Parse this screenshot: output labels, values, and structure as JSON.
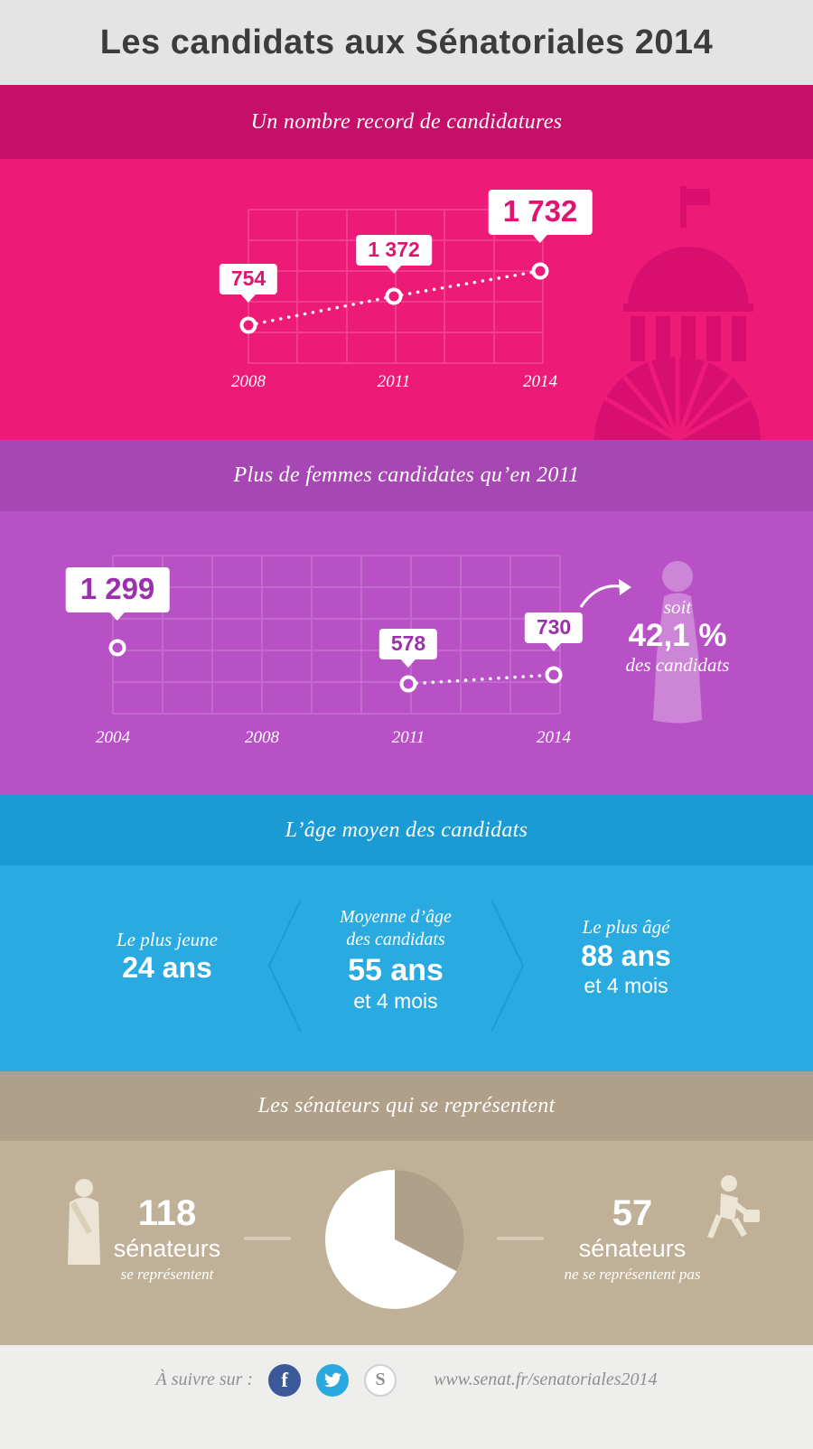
{
  "header": {
    "title": "Les candidats aux Sénatoriales 2014"
  },
  "sections": {
    "candidatures": {
      "title": "Un nombre record de candidatures",
      "years": [
        "2008",
        "2011",
        "2014"
      ],
      "labels": [
        "754",
        "1 372",
        "1 732"
      ]
    },
    "femmes": {
      "title": "Plus de femmes candidates qu’en 2011",
      "years": [
        "2004",
        "2008",
        "2011",
        "2014"
      ],
      "labels": [
        "1 299",
        "578",
        "730"
      ],
      "share": {
        "prefix": "soit",
        "value": "42,1 %",
        "suffix": "des candidats"
      }
    },
    "age": {
      "title": "L’âge moyen des candidats",
      "youngest": {
        "label": "Le plus jeune",
        "value": "24 ans"
      },
      "average": {
        "label_line1": "Moyenne d’âge",
        "label_line2": "des candidats",
        "value": "55 ans",
        "suffix": "et 4 mois"
      },
      "oldest": {
        "label": "Le plus âgé",
        "value": "88 ans",
        "suffix": "et 4 mois"
      }
    },
    "senateurs": {
      "title": "Les sénateurs qui se représentent",
      "left": {
        "value": "118",
        "label": "sénateurs",
        "sub": "se représentent"
      },
      "right": {
        "value": "57",
        "label": "sénateurs",
        "sub": "ne se représentent pas"
      }
    }
  },
  "footer": {
    "follow_label": "À suivre sur :",
    "url": "www.senat.fr/senatoriales2014",
    "icons": {
      "facebook_letter": "f",
      "senat_letter": "S"
    }
  },
  "colors": {
    "pink_band": "#c50f68",
    "pink_body": "#ed1a78",
    "pink_dome": "#d90f70",
    "purple_band": "#a647b4",
    "purple_body": "#b851c6",
    "blue_band": "#1b9bd3",
    "blue_body": "#29abe2",
    "tan_band": "#b1a089",
    "tan_body": "#c0b098",
    "facebook": "#3b5998",
    "twitter": "#2aa9e0"
  },
  "chart_data": [
    {
      "type": "line",
      "title": "Un nombre record de candidatures",
      "x": [
        "2008",
        "2011",
        "2014"
      ],
      "values": [
        754,
        1372,
        1732
      ],
      "style": "dotted line with point labels, no visible y-axis",
      "legend_position": "none"
    },
    {
      "type": "line",
      "title": "Plus de femmes candidates qu’en 2011",
      "x": [
        "2004",
        "2008",
        "2011",
        "2014"
      ],
      "values": [
        1299,
        null,
        578,
        730
      ],
      "annotation": "soit 42,1 % des candidats",
      "style": "dotted segment between 2011 and 2014 only"
    },
    {
      "type": "table",
      "title": "L’âge moyen des candidats",
      "categories": [
        "Le plus jeune",
        "Moyenne d’âge des candidats",
        "Le plus âgé"
      ],
      "values_text": [
        "24 ans",
        "55 ans et 4 mois",
        "88 ans et 4 mois"
      ]
    },
    {
      "type": "pie",
      "title": "Les sénateurs qui se représentent",
      "categories": [
        "se représentent",
        "ne se représentent pas"
      ],
      "values": [
        118,
        57
      ]
    }
  ]
}
